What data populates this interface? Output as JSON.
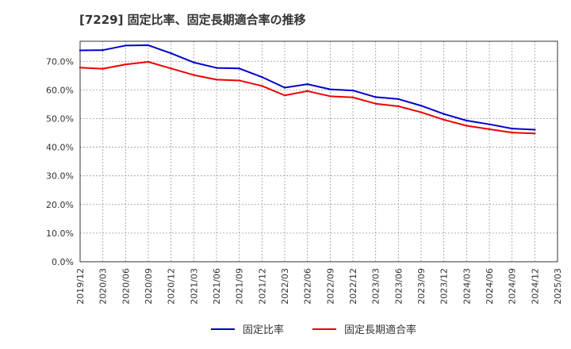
{
  "chart_data": {
    "type": "line",
    "title": "[7229]  固定比率、固定長期適合率の推移",
    "xlabel": "",
    "ylabel": "",
    "ylim": [
      0,
      77
    ],
    "y_ticks": [
      "0.0%",
      "10.0%",
      "20.0%",
      "30.0%",
      "40.0%",
      "50.0%",
      "60.0%",
      "70.0%"
    ],
    "y_tick_values": [
      0,
      10,
      20,
      30,
      40,
      50,
      60,
      70
    ],
    "x_ticks": [
      "2019/12",
      "2020/03",
      "2020/06",
      "2020/09",
      "2020/12",
      "2021/03",
      "2021/06",
      "2021/09",
      "2021/12",
      "2022/03",
      "2022/06",
      "2022/09",
      "2022/12",
      "2023/03",
      "2023/06",
      "2023/09",
      "2023/12",
      "2024/03",
      "2024/06",
      "2024/09",
      "2024/12",
      "2025/03"
    ],
    "x": [
      "2019/12",
      "2020/03",
      "2020/06",
      "2020/09",
      "2020/12",
      "2021/03",
      "2021/06",
      "2021/09",
      "2021/12",
      "2022/03",
      "2022/06",
      "2022/09",
      "2022/12",
      "2023/03",
      "2023/06",
      "2023/09",
      "2023/12",
      "2024/03",
      "2024/06",
      "2024/09",
      "2024/12"
    ],
    "grid": true,
    "legend_position": "bottom",
    "series": [
      {
        "name": "固定比率",
        "color": "#0000cc",
        "values": [
          73.8,
          73.9,
          75.5,
          75.6,
          72.8,
          69.6,
          67.7,
          67.5,
          64.5,
          60.8,
          62.0,
          60.2,
          59.8,
          57.5,
          56.8,
          54.5,
          51.6,
          49.3,
          48.0,
          46.5,
          46.1
        ]
      },
      {
        "name": "固定長期適合率",
        "color": "#ee0000",
        "values": [
          67.8,
          67.4,
          68.9,
          69.8,
          67.5,
          65.2,
          63.6,
          63.3,
          61.4,
          58.1,
          59.6,
          57.8,
          57.4,
          55.2,
          54.3,
          52.2,
          49.6,
          47.5,
          46.3,
          45.1,
          44.8
        ]
      }
    ]
  }
}
